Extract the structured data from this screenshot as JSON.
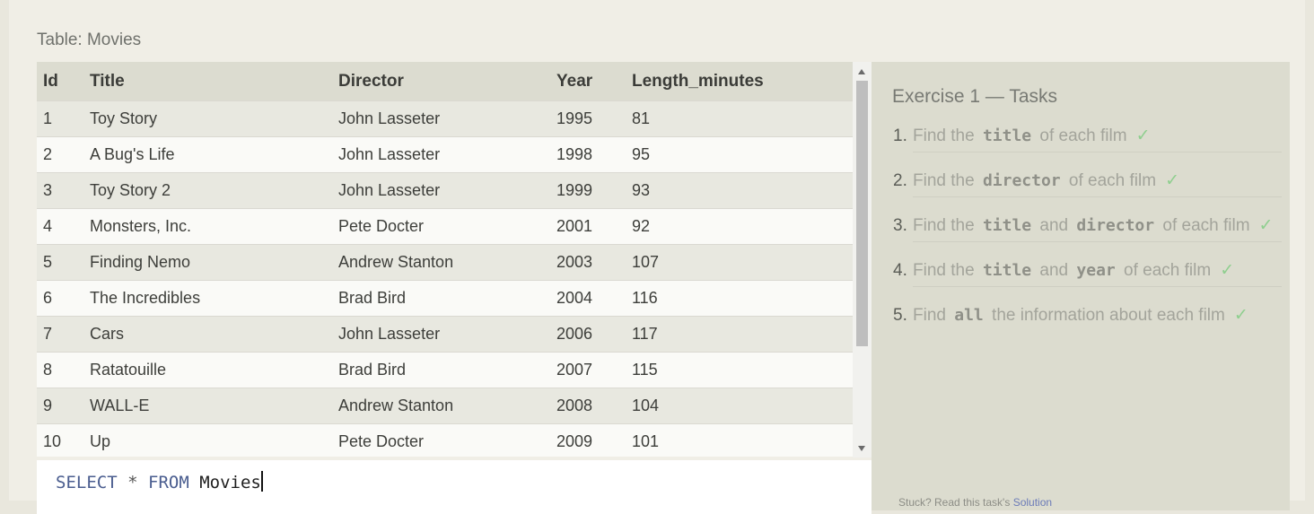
{
  "table": {
    "caption": "Table: Movies",
    "columns": [
      "Id",
      "Title",
      "Director",
      "Year",
      "Length_minutes"
    ],
    "rows": [
      [
        "1",
        "Toy Story",
        "John Lasseter",
        "1995",
        "81"
      ],
      [
        "2",
        "A Bug's Life",
        "John Lasseter",
        "1998",
        "95"
      ],
      [
        "3",
        "Toy Story 2",
        "John Lasseter",
        "1999",
        "93"
      ],
      [
        "4",
        "Monsters, Inc.",
        "Pete Docter",
        "2001",
        "92"
      ],
      [
        "5",
        "Finding Nemo",
        "Andrew Stanton",
        "2003",
        "107"
      ],
      [
        "6",
        "The Incredibles",
        "Brad Bird",
        "2004",
        "116"
      ],
      [
        "7",
        "Cars",
        "John Lasseter",
        "2006",
        "117"
      ],
      [
        "8",
        "Ratatouille",
        "Brad Bird",
        "2007",
        "115"
      ],
      [
        "9",
        "WALL-E",
        "Andrew Stanton",
        "2008",
        "104"
      ],
      [
        "10",
        "Up",
        "Pete Docter",
        "2009",
        "101"
      ]
    ]
  },
  "editor": {
    "kw_select": "SELECT",
    "star": "*",
    "kw_from": "FROM",
    "table_name": "Movies"
  },
  "tasks": {
    "title": "Exercise 1 — Tasks",
    "check": "✓",
    "items": [
      {
        "num": "1.",
        "p1": "Find the",
        "c1": "title",
        "p2": "of each film"
      },
      {
        "num": "2.",
        "p1": "Find the",
        "c1": "director",
        "p2": "of each film"
      },
      {
        "num": "3.",
        "p1": "Find the",
        "c1": "title",
        "p2": "and",
        "c2": "director",
        "p3": "of each film"
      },
      {
        "num": "4.",
        "p1": "Find the",
        "c1": "title",
        "p2": "and",
        "c2": "year",
        "p3": "of each film"
      },
      {
        "num": "5.",
        "p1": "Find",
        "c1": "all",
        "p2": "the information about each film"
      }
    ],
    "footer_text": "Stuck? Read this task's",
    "footer_link": "Solution"
  }
}
